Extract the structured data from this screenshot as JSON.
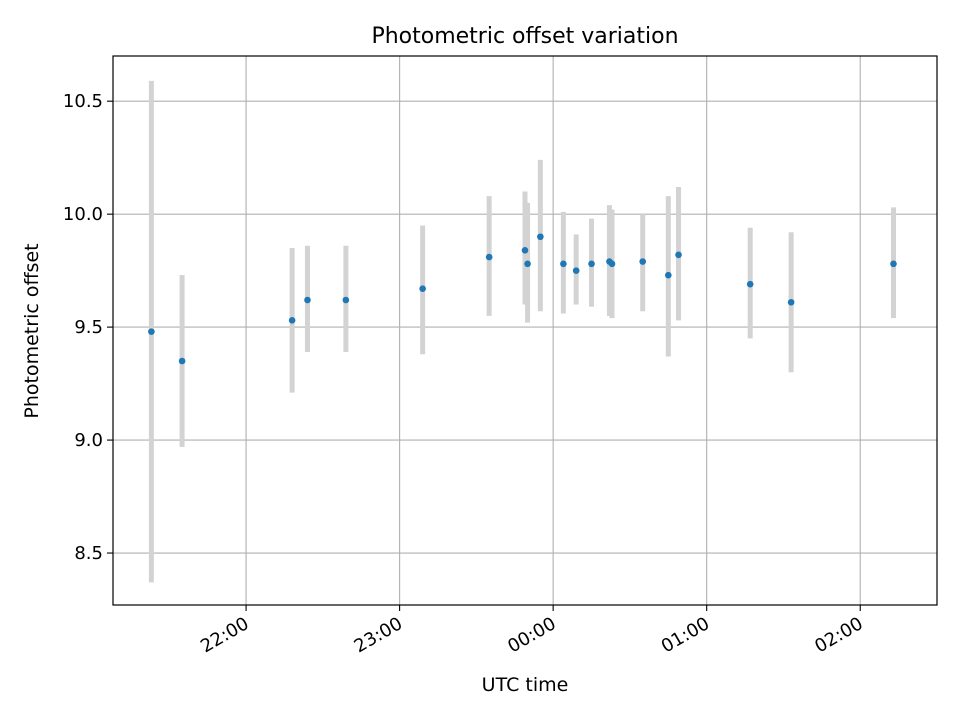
{
  "chart_data": {
    "type": "scatter",
    "title": "Photometric offset variation",
    "xlabel": "UTC time",
    "ylabel": "Photometric offset",
    "x_axis": {
      "kind": "time",
      "range": [
        "21:08",
        "02:30"
      ],
      "ticks": [
        "22:00",
        "23:00",
        "00:00",
        "01:00",
        "02:00"
      ]
    },
    "y_axis": {
      "range": [
        8.27,
        10.7
      ],
      "ticks": [
        "8.5",
        "9.0",
        "9.5",
        "10.0",
        "10.5"
      ]
    },
    "grid": true,
    "colors": {
      "point": "#1f77b4",
      "errorbar": "#d3d3d3",
      "grid": "#b0b0b0"
    },
    "points": [
      {
        "x": "21:23",
        "y": 9.48,
        "low": 8.37,
        "high": 10.59
      },
      {
        "x": "21:35",
        "y": 9.35,
        "low": 8.97,
        "high": 9.73
      },
      {
        "x": "22:18",
        "y": 9.53,
        "low": 9.21,
        "high": 9.85
      },
      {
        "x": "22:24",
        "y": 9.62,
        "low": 9.39,
        "high": 9.86
      },
      {
        "x": "22:39",
        "y": 9.62,
        "low": 9.39,
        "high": 9.86
      },
      {
        "x": "23:09",
        "y": 9.67,
        "low": 9.38,
        "high": 9.95
      },
      {
        "x": "23:35",
        "y": 9.81,
        "low": 9.55,
        "high": 10.08
      },
      {
        "x": "23:49",
        "y": 9.84,
        "low": 9.6,
        "high": 10.1
      },
      {
        "x": "23:50",
        "y": 9.78,
        "low": 9.52,
        "high": 10.05
      },
      {
        "x": "23:55",
        "y": 9.9,
        "low": 9.57,
        "high": 10.24
      },
      {
        "x": "00:04",
        "y": 9.78,
        "low": 9.56,
        "high": 10.01
      },
      {
        "x": "00:09",
        "y": 9.75,
        "low": 9.6,
        "high": 9.91
      },
      {
        "x": "00:15",
        "y": 9.78,
        "low": 9.59,
        "high": 9.98
      },
      {
        "x": "00:22",
        "y": 9.79,
        "low": 9.55,
        "high": 10.04
      },
      {
        "x": "00:23",
        "y": 9.78,
        "low": 9.54,
        "high": 10.02
      },
      {
        "x": "00:35",
        "y": 9.79,
        "low": 9.57,
        "high": 10.0
      },
      {
        "x": "00:45",
        "y": 9.73,
        "low": 9.37,
        "high": 10.08
      },
      {
        "x": "00:49",
        "y": 9.82,
        "low": 9.53,
        "high": 10.12
      },
      {
        "x": "01:17",
        "y": 9.69,
        "low": 9.45,
        "high": 9.94
      },
      {
        "x": "01:33",
        "y": 9.61,
        "low": 9.3,
        "high": 9.92
      },
      {
        "x": "02:13",
        "y": 9.78,
        "low": 9.54,
        "high": 10.03
      }
    ]
  }
}
